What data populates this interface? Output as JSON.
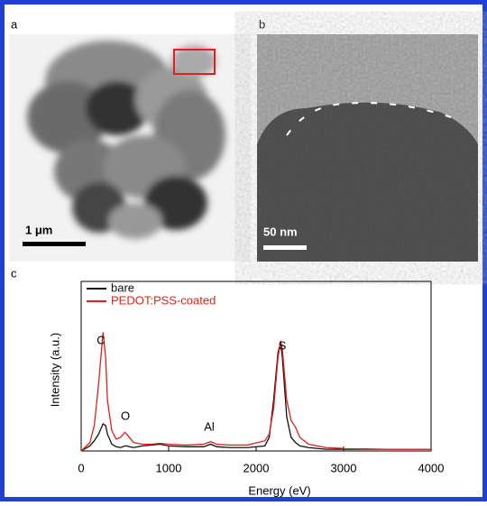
{
  "figure": {
    "panels": {
      "a": "a",
      "b": "b",
      "c": "c"
    },
    "scale_bar_a": "1 μm",
    "scale_bar_b": "50 nm"
  },
  "chart_data": {
    "type": "line",
    "xlabel": "Energy (eV)",
    "ylabel": "Intensity (a.u.)",
    "annotations": [
      "C",
      "O",
      "Al",
      "S"
    ],
    "xlim": [
      0,
      4000
    ],
    "xticks": [
      0,
      1000,
      2000,
      3000,
      4000
    ],
    "ylim": [
      0,
      1
    ],
    "legend": "upper left",
    "x": [
      0,
      100,
      150,
      200,
      250,
      280,
      300,
      350,
      400,
      450,
      500,
      520,
      550,
      600,
      700,
      800,
      900,
      1000,
      1200,
      1400,
      1480,
      1550,
      1700,
      1900,
      2100,
      2150,
      2200,
      2250,
      2280,
      2300,
      2350,
      2400,
      2450,
      2500,
      2600,
      2800,
      3000,
      3500,
      4000
    ],
    "series": [
      {
        "name": "bare",
        "color": "#111111",
        "values": [
          0,
          0.03,
          0.06,
          0.1,
          0.16,
          0.15,
          0.1,
          0.04,
          0.025,
          0.02,
          0.03,
          0.03,
          0.025,
          0.02,
          0.03,
          0.035,
          0.04,
          0.03,
          0.025,
          0.025,
          0.04,
          0.025,
          0.02,
          0.02,
          0.03,
          0.08,
          0.3,
          0.58,
          0.64,
          0.55,
          0.2,
          0.08,
          0.05,
          0.03,
          0.02,
          0.01,
          0.01,
          0.01,
          0.01
        ]
      },
      {
        "name": "PEDOT:PSS-coated",
        "color": "#e0201c",
        "values": [
          0,
          0.05,
          0.15,
          0.4,
          0.7,
          0.55,
          0.3,
          0.12,
          0.07,
          0.08,
          0.11,
          0.1,
          0.08,
          0.05,
          0.04,
          0.04,
          0.045,
          0.04,
          0.035,
          0.04,
          0.055,
          0.04,
          0.035,
          0.035,
          0.06,
          0.1,
          0.25,
          0.55,
          0.65,
          0.6,
          0.3,
          0.18,
          0.14,
          0.08,
          0.04,
          0.02,
          0.015,
          0.01,
          0.01
        ]
      }
    ]
  }
}
